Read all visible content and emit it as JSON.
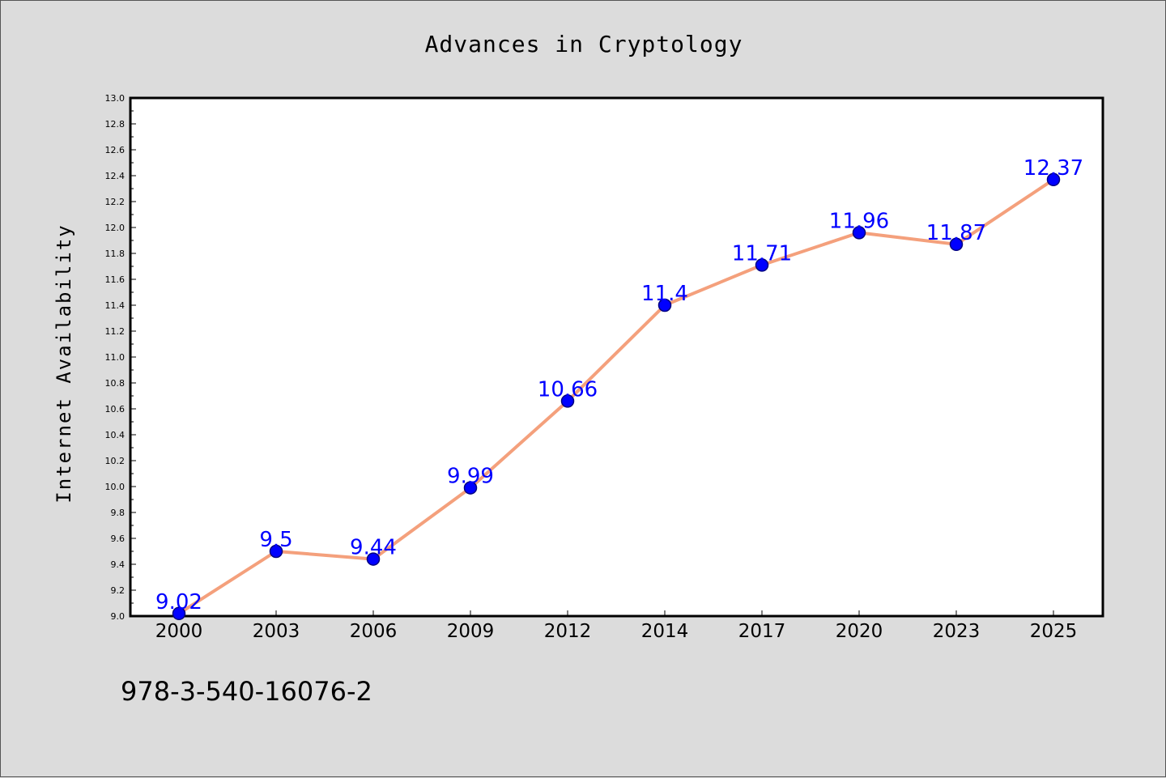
{
  "chart_data": {
    "type": "line",
    "title": "Advances in Cryptology",
    "xlabel": "",
    "ylabel": "Internet Availability",
    "categories": [
      "2000",
      "2003",
      "2006",
      "2009",
      "2012",
      "2014",
      "2017",
      "2020",
      "2023",
      "2025"
    ],
    "series": [
      {
        "values": [
          9.02,
          9.5,
          9.44,
          9.99,
          10.66,
          11.4,
          11.71,
          11.96,
          11.87,
          12.37
        ],
        "labels": [
          "9.02",
          "9.5",
          "9.44",
          "9.99",
          "10.66",
          "11.4",
          "11.71",
          "11.96",
          "11.87",
          "12.37"
        ]
      }
    ],
    "ylim": [
      9.0,
      13.0
    ],
    "yticks": [
      "9.0",
      "9.2",
      "9.4",
      "9.6",
      "9.8",
      "10.0",
      "10.2",
      "10.4",
      "10.6",
      "10.8",
      "11.0",
      "11.2",
      "11.4",
      "11.6",
      "11.8",
      "12.0",
      "12.2",
      "12.4",
      "12.6",
      "12.8",
      "13.0"
    ],
    "grid": false,
    "legend": "none",
    "colors": {
      "line": "#f4a07c",
      "marker_fill": "#0000ff",
      "marker_edge": "#000080",
      "data_label": "#0000ff",
      "plot_background": "#ffffff",
      "figure_background": "#dcdcdc"
    }
  },
  "caption": "978-3-540-16076-2"
}
